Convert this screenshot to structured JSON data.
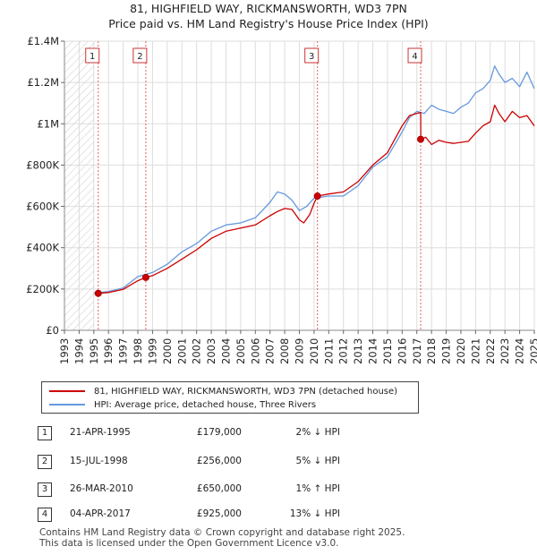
{
  "title_line1": "81, HIGHFIELD WAY, RICKMANSWORTH, WD3 7PN",
  "title_line2": "Price paid vs. HM Land Registry's House Price Index (HPI)",
  "colors": {
    "property": "#cc0000",
    "hpi": "#6699dd",
    "grid": "#dddddd",
    "hatch": "#cccccc",
    "marker_line": "#e06060"
  },
  "legend": {
    "property_label": "81, HIGHFIELD WAY, RICKMANSWORTH, WD3 7PN (detached house)",
    "hpi_label": "HPI: Average price, detached house, Three Rivers"
  },
  "sales": [
    {
      "num": "1",
      "date": "21-APR-1995",
      "price": "£179,000",
      "hpi_delta": "2% ↓ HPI"
    },
    {
      "num": "2",
      "date": "15-JUL-1998",
      "price": "£256,000",
      "hpi_delta": "5% ↓ HPI"
    },
    {
      "num": "3",
      "date": "26-MAR-2010",
      "price": "£650,000",
      "hpi_delta": "1% ↑ HPI"
    },
    {
      "num": "4",
      "date": "04-APR-2017",
      "price": "£925,000",
      "hpi_delta": "13% ↓ HPI"
    }
  ],
  "footer_line1": "Contains HM Land Registry data © Crown copyright and database right 2025.",
  "footer_line2": "This data is licensed under the Open Government Licence v3.0.",
  "chart_data": {
    "type": "line",
    "title": "81, HIGHFIELD WAY, RICKMANSWORTH, WD3 7PN — Price paid vs. HM Land Registry's House Price Index (HPI)",
    "xlabel": "",
    "ylabel": "",
    "xlim": [
      1993,
      2025
    ],
    "ylim": [
      0,
      1400000
    ],
    "x_ticks": [
      1993,
      1994,
      1995,
      1996,
      1997,
      1998,
      1999,
      2000,
      2001,
      2002,
      2003,
      2004,
      2005,
      2006,
      2007,
      2008,
      2009,
      2010,
      2011,
      2012,
      2013,
      2014,
      2015,
      2016,
      2017,
      2018,
      2019,
      2020,
      2021,
      2022,
      2023,
      2024,
      2025
    ],
    "y_ticks": [
      {
        "value": 0,
        "label": "£0"
      },
      {
        "value": 200000,
        "label": "£200K"
      },
      {
        "value": 400000,
        "label": "£400K"
      },
      {
        "value": 600000,
        "label": "£600K"
      },
      {
        "value": 800000,
        "label": "£800K"
      },
      {
        "value": 1000000,
        "label": "£1M"
      },
      {
        "value": 1200000,
        "label": "£1.2M"
      },
      {
        "value": 1400000,
        "label": "£1.4M"
      }
    ],
    "hatched_until": 1995.0,
    "sale_markers": [
      {
        "label": "1",
        "x": 1995.3,
        "value": 179000
      },
      {
        "label": "2",
        "x": 1998.54,
        "value": 256000
      },
      {
        "label": "3",
        "x": 2010.23,
        "value": 650000
      },
      {
        "label": "4",
        "x": 2017.26,
        "value": 925000
      }
    ],
    "series": [
      {
        "name": "81, HIGHFIELD WAY, RICKMANSWORTH, WD3 7PN (detached house)",
        "x": [
          1995.3,
          1996,
          1997,
          1998,
          1998.54,
          1999,
          2000,
          2001,
          2002,
          2003,
          2004,
          2005,
          2006,
          2007,
          2007.5,
          2008,
          2008.5,
          2009,
          2009.3,
          2009.7,
          2010,
          2010.23,
          2011,
          2012,
          2013,
          2014,
          2015,
          2016,
          2016.5,
          2017,
          2017.26,
          2017.27,
          2017.6,
          2018,
          2018.5,
          2019,
          2019.5,
          2020,
          2020.5,
          2021,
          2021.5,
          2022,
          2022.3,
          2022.6,
          2023,
          2023.5,
          2024,
          2024.5,
          2025
        ],
        "values": [
          179000,
          183000,
          198000,
          240000,
          256000,
          265000,
          300000,
          345000,
          390000,
          445000,
          480000,
          495000,
          510000,
          555000,
          575000,
          590000,
          585000,
          535000,
          520000,
          560000,
          615000,
          650000,
          660000,
          670000,
          720000,
          800000,
          860000,
          990000,
          1040000,
          1050000,
          1055000,
          925000,
          935000,
          900000,
          920000,
          910000,
          905000,
          910000,
          915000,
          955000,
          990000,
          1010000,
          1090000,
          1050000,
          1010000,
          1060000,
          1030000,
          1040000,
          990000
        ]
      },
      {
        "name": "HPI: Average price, detached house, Three Rivers",
        "x": [
          1995,
          1995.5,
          1996,
          1997,
          1998,
          1999,
          2000,
          2001,
          2002,
          2003,
          2004,
          2005,
          2006,
          2007,
          2007.5,
          2008,
          2008.5,
          2009,
          2009.5,
          2010,
          2011,
          2012,
          2013,
          2014,
          2015,
          2016,
          2016.5,
          2017,
          2017.5,
          2018,
          2018.5,
          2019,
          2019.5,
          2020,
          2020.5,
          2021,
          2021.5,
          2022,
          2022.3,
          2022.6,
          2023,
          2023.5,
          2024,
          2024.5,
          2025
        ],
        "values": [
          180000,
          184000,
          188000,
          205000,
          260000,
          280000,
          320000,
          380000,
          420000,
          480000,
          510000,
          520000,
          545000,
          620000,
          670000,
          660000,
          630000,
          580000,
          600000,
          640000,
          650000,
          650000,
          700000,
          790000,
          840000,
          960000,
          1030000,
          1060000,
          1050000,
          1090000,
          1070000,
          1060000,
          1050000,
          1080000,
          1100000,
          1150000,
          1170000,
          1210000,
          1280000,
          1240000,
          1200000,
          1220000,
          1180000,
          1250000,
          1170000
        ]
      }
    ]
  }
}
